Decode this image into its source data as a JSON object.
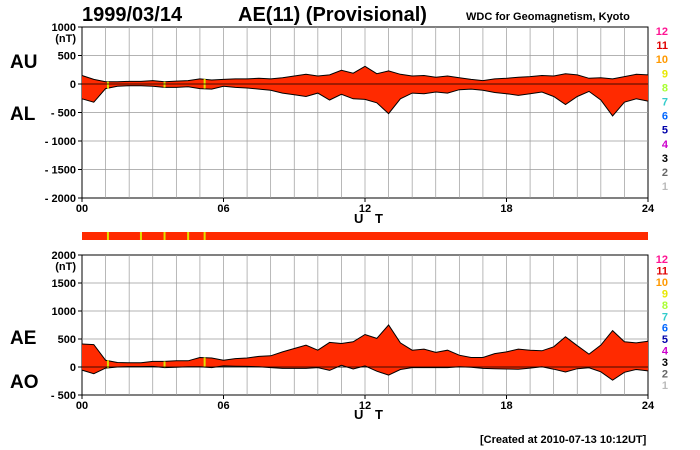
{
  "header": {
    "date": "1999/03/14",
    "title": "AE(11) (Provisional)",
    "institution": "WDC for Geomagnetism, Kyoto"
  },
  "footer": {
    "created": "[Created at 2010-07-13 10:12UT]"
  },
  "colors": {
    "fill": "#ff2a00",
    "marker": "#e0e000",
    "grid": "#9a9a9a"
  },
  "legend": {
    "items": [
      {
        "label": "12",
        "color": "#ff1493"
      },
      {
        "label": "11",
        "color": "#e00000"
      },
      {
        "label": "10",
        "color": "#ff9900"
      },
      {
        "label": "9",
        "color": "#e8e800"
      },
      {
        "label": "8",
        "color": "#aaff33"
      },
      {
        "label": "7",
        "color": "#33cccc"
      },
      {
        "label": "6",
        "color": "#0066ff"
      },
      {
        "label": "5",
        "color": "#0000aa"
      },
      {
        "label": "4",
        "color": "#cc00cc"
      },
      {
        "label": "3",
        "color": "#000000"
      },
      {
        "label": "2",
        "color": "#666666"
      },
      {
        "label": "1",
        "color": "#bbbbbb"
      }
    ]
  },
  "chart_data": [
    {
      "type": "area",
      "panel": "top",
      "upper_label": "AU",
      "lower_label": "AL",
      "unit": "(nT)",
      "xlabel": "U T",
      "xticks": [
        "00",
        "06",
        "12",
        "18",
        "24"
      ],
      "yticks": [
        "1000",
        "500",
        "0",
        "- 500",
        "- 1000",
        "- 1500",
        "- 2000"
      ],
      "ytick_values": [
        1000,
        500,
        0,
        -500,
        -1000,
        -1500,
        -2000
      ],
      "xlim": [
        0,
        24
      ],
      "ylim": [
        -2000,
        1000
      ],
      "grid": true,
      "x": [
        0,
        0.5,
        1,
        1.5,
        2,
        2.5,
        3,
        3.5,
        4,
        4.5,
        5,
        5.5,
        6,
        6.5,
        7,
        7.5,
        8,
        8.5,
        9,
        9.5,
        10,
        10.5,
        11,
        11.5,
        12,
        12.5,
        13,
        13.5,
        14,
        14.5,
        15,
        15.5,
        16,
        16.5,
        17,
        17.5,
        18,
        18.5,
        19,
        19.5,
        20,
        20.5,
        21,
        21.5,
        22,
        22.5,
        23,
        23.5,
        24
      ],
      "series": [
        {
          "name": "AU",
          "values": [
            150,
            80,
            40,
            40,
            45,
            45,
            60,
            40,
            50,
            60,
            90,
            70,
            80,
            90,
            90,
            100,
            90,
            110,
            140,
            170,
            140,
            160,
            240,
            190,
            310,
            180,
            230,
            170,
            140,
            150,
            120,
            140,
            110,
            80,
            60,
            90,
            100,
            120,
            130,
            150,
            140,
            180,
            160,
            100,
            110,
            90,
            130,
            170,
            160
          ]
        },
        {
          "name": "AL",
          "values": [
            -260,
            -320,
            -80,
            -40,
            -30,
            -30,
            -40,
            -60,
            -60,
            -50,
            -80,
            -90,
            -40,
            -60,
            -70,
            -90,
            -110,
            -160,
            -190,
            -220,
            -160,
            -280,
            -180,
            -260,
            -270,
            -330,
            -520,
            -260,
            -160,
            -170,
            -140,
            -160,
            -100,
            -90,
            -110,
            -150,
            -170,
            -200,
            -170,
            -140,
            -220,
            -360,
            -220,
            -130,
            -280,
            -560,
            -320,
            -260,
            -300
          ]
        }
      ]
    },
    {
      "type": "area",
      "panel": "bottom",
      "upper_label": "AE",
      "lower_label": "AO",
      "unit": "(nT)",
      "xlabel": "U T",
      "xticks": [
        "00",
        "06",
        "12",
        "18",
        "24"
      ],
      "yticks": [
        "2000",
        "1500",
        "1000",
        "500",
        "0",
        "- 500"
      ],
      "ytick_values": [
        2000,
        1500,
        1000,
        500,
        0,
        -500
      ],
      "xlim": [
        0,
        24
      ],
      "ylim": [
        -500,
        2000
      ],
      "grid": true,
      "x": [
        0,
        0.5,
        1,
        1.5,
        2,
        2.5,
        3,
        3.5,
        4,
        4.5,
        5,
        5.5,
        6,
        6.5,
        7,
        7.5,
        8,
        8.5,
        9,
        9.5,
        10,
        10.5,
        11,
        11.5,
        12,
        12.5,
        13,
        13.5,
        14,
        14.5,
        15,
        15.5,
        16,
        16.5,
        17,
        17.5,
        18,
        18.5,
        19,
        19.5,
        20,
        20.5,
        21,
        21.5,
        22,
        22.5,
        23,
        23.5,
        24
      ],
      "series": [
        {
          "name": "AE",
          "values": [
            410,
            400,
            120,
            80,
            75,
            75,
            100,
            100,
            110,
            110,
            170,
            160,
            120,
            150,
            160,
            190,
            200,
            270,
            330,
            390,
            300,
            440,
            420,
            450,
            580,
            510,
            750,
            430,
            300,
            320,
            260,
            300,
            210,
            170,
            170,
            240,
            270,
            320,
            300,
            290,
            360,
            540,
            380,
            230,
            390,
            650,
            450,
            430,
            460
          ]
        },
        {
          "name": "AO",
          "values": [
            -55,
            -120,
            -20,
            0,
            8,
            8,
            10,
            -10,
            -5,
            5,
            5,
            -10,
            20,
            15,
            10,
            5,
            -10,
            -25,
            -25,
            -25,
            -10,
            -60,
            30,
            -35,
            20,
            -75,
            -145,
            -45,
            -10,
            -10,
            -10,
            -10,
            5,
            -5,
            -25,
            -30,
            -35,
            -40,
            -20,
            5,
            -40,
            -90,
            -30,
            -15,
            -85,
            -235,
            -95,
            -45,
            -70
          ]
        }
      ]
    }
  ]
}
